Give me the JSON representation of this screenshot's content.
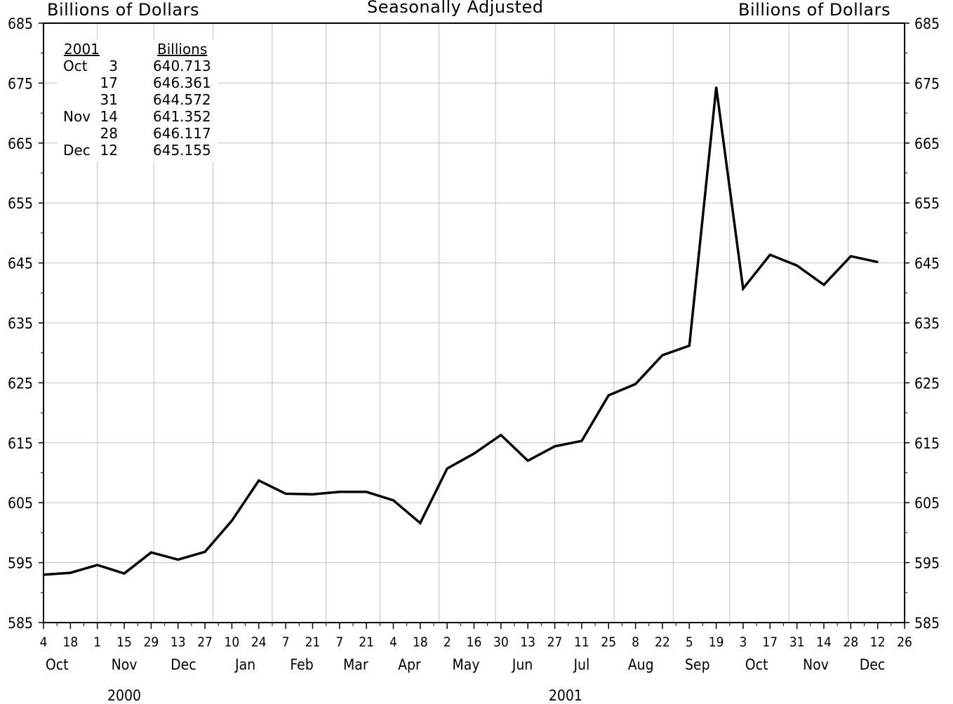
{
  "header": {
    "left_axis_label": "Billions of Dollars",
    "center_label": "Seasonally Adjusted",
    "right_axis_label": "Billions of Dollars"
  },
  "legend": {
    "year_header": "2001",
    "value_header": "Billions",
    "rows": [
      {
        "month": "Oct",
        "day": "3",
        "value": "640.713"
      },
      {
        "month": "",
        "day": "17",
        "value": "646.361"
      },
      {
        "month": "",
        "day": "31",
        "value": "644.572"
      },
      {
        "month": "Nov",
        "day": "14",
        "value": "641.352"
      },
      {
        "month": "",
        "day": "28",
        "value": "646.117"
      },
      {
        "month": "Dec",
        "day": "12",
        "value": "645.155"
      }
    ]
  },
  "chart_data": {
    "type": "line",
    "title": "",
    "xlabel": "",
    "ylabel": "Billions of Dollars",
    "ylim": [
      585,
      685
    ],
    "y_ticks": [
      585,
      595,
      605,
      615,
      625,
      635,
      645,
      655,
      665,
      675,
      685
    ],
    "grid": true,
    "x_tick_labels": [
      "4",
      "18",
      "1",
      "15",
      "29",
      "13",
      "27",
      "10",
      "24",
      "7",
      "21",
      "7",
      "21",
      "4",
      "18",
      "2",
      "16",
      "30",
      "13",
      "27",
      "11",
      "25",
      "8",
      "22",
      "5",
      "19",
      "3",
      "17",
      "31",
      "14",
      "28",
      "12",
      "26"
    ],
    "months": [
      {
        "label": "Oct",
        "tick": 0.5
      },
      {
        "label": "Nov",
        "tick": 3
      },
      {
        "label": "Dec",
        "tick": 5.2
      },
      {
        "label": "Jan",
        "tick": 7.5
      },
      {
        "label": "Feb",
        "tick": 9.6
      },
      {
        "label": "Mar",
        "tick": 11.6
      },
      {
        "label": "Apr",
        "tick": 13.6
      },
      {
        "label": "May",
        "tick": 15.7
      },
      {
        "label": "Jun",
        "tick": 17.8
      },
      {
        "label": "Jul",
        "tick": 20
      },
      {
        "label": "Aug",
        "tick": 22.2
      },
      {
        "label": "Sep",
        "tick": 24.3
      },
      {
        "label": "Oct",
        "tick": 26.5
      },
      {
        "label": "Nov",
        "tick": 28.7
      },
      {
        "label": "Dec",
        "tick": 30.8
      }
    ],
    "years": [
      {
        "label": "2000",
        "tick": 3
      },
      {
        "label": "2001",
        "tick": 19.4
      }
    ],
    "month_boundaries": [
      2,
      4.1,
      6.3,
      8.5,
      10.5,
      12.5,
      14.7,
      16.8,
      19,
      21.2,
      23.4,
      25.5,
      27.7,
      29.9
    ],
    "series": [
      {
        "values": [
          {
            "x": "2000-10-04",
            "y": 593.0
          },
          {
            "x": "2000-10-18",
            "y": 593.3
          },
          {
            "x": "2000-11-01",
            "y": 594.6
          },
          {
            "x": "2000-11-15",
            "y": 593.2
          },
          {
            "x": "2000-11-29",
            "y": 596.7
          },
          {
            "x": "2000-12-13",
            "y": 595.5
          },
          {
            "x": "2000-12-27",
            "y": 596.8
          },
          {
            "x": "2001-01-10",
            "y": 602.0
          },
          {
            "x": "2001-01-24",
            "y": 608.7
          },
          {
            "x": "2001-02-07",
            "y": 606.5
          },
          {
            "x": "2001-02-21",
            "y": 606.4
          },
          {
            "x": "2001-03-07",
            "y": 606.8
          },
          {
            "x": "2001-03-21",
            "y": 606.8
          },
          {
            "x": "2001-04-04",
            "y": 605.4
          },
          {
            "x": "2001-04-18",
            "y": 601.6
          },
          {
            "x": "2001-05-02",
            "y": 610.7
          },
          {
            "x": "2001-05-16",
            "y": 613.2
          },
          {
            "x": "2001-05-30",
            "y": 616.3
          },
          {
            "x": "2001-06-13",
            "y": 612.0
          },
          {
            "x": "2001-06-27",
            "y": 614.4
          },
          {
            "x": "2001-07-11",
            "y": 615.3
          },
          {
            "x": "2001-07-25",
            "y": 622.9
          },
          {
            "x": "2001-08-08",
            "y": 624.8
          },
          {
            "x": "2001-08-22",
            "y": 629.6
          },
          {
            "x": "2001-09-05",
            "y": 631.2
          },
          {
            "x": "2001-09-19",
            "y": 674.3
          },
          {
            "x": "2001-10-03",
            "y": 640.713
          },
          {
            "x": "2001-10-17",
            "y": 646.361
          },
          {
            "x": "2001-10-31",
            "y": 644.572
          },
          {
            "x": "2001-11-14",
            "y": 641.352
          },
          {
            "x": "2001-11-28",
            "y": 646.117
          },
          {
            "x": "2001-12-12",
            "y": 645.155
          }
        ]
      }
    ],
    "colors": {
      "line": "#000000",
      "grid": "#c0c0c0",
      "axis": "#000000"
    }
  }
}
